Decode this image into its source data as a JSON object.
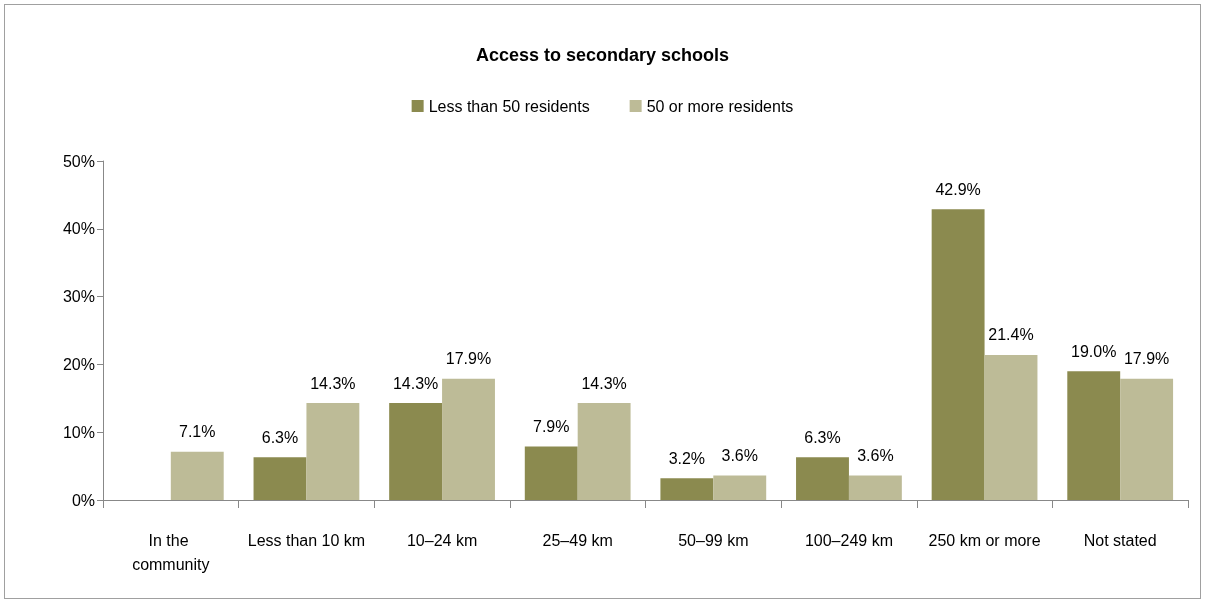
{
  "chart_data": {
    "type": "bar",
    "title": "Access to secondary schools",
    "categories": [
      "In the community",
      "Less than 10 km",
      "10–24 km",
      "25–49 km",
      "50–99 km",
      "100–249 km",
      "250 km or more",
      "Not stated"
    ],
    "series": [
      {
        "name": "Less than 50 residents",
        "color": "#8b8a4f",
        "values": [
          null,
          6.3,
          14.3,
          7.9,
          3.2,
          6.3,
          42.9,
          19.0
        ],
        "value_labels": [
          null,
          "6.3%",
          "14.3%",
          "7.9%",
          "3.2%",
          "6.3%",
          "42.9%",
          "19.0%"
        ]
      },
      {
        "name": "50 or more residents",
        "color": "#bdbb97",
        "values": [
          7.1,
          14.3,
          17.9,
          14.3,
          3.6,
          3.6,
          21.4,
          17.9
        ],
        "value_labels": [
          "7.1%",
          "14.3%",
          "17.9%",
          "14.3%",
          "3.6%",
          "3.6%",
          "21.4%",
          "17.9%"
        ]
      }
    ],
    "ylim": [
      0,
      50
    ],
    "yticks": [
      {
        "value": 0,
        "label": "0%"
      },
      {
        "value": 10,
        "label": "10%"
      },
      {
        "value": 20,
        "label": "20%"
      },
      {
        "value": 30,
        "label": "30%"
      },
      {
        "value": 40,
        "label": "40%"
      },
      {
        "value": 50,
        "label": "50%"
      }
    ],
    "grid": false,
    "legend": "top"
  }
}
